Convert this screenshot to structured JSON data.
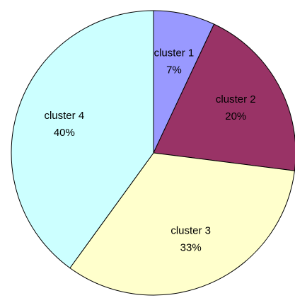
{
  "chart_data": {
    "type": "pie",
    "categories": [
      "cluster 1",
      "cluster 2",
      "cluster 3",
      "cluster 4"
    ],
    "values": [
      7,
      20,
      33,
      40
    ],
    "value_labels": [
      "7%",
      "20%",
      "33%",
      "40%"
    ],
    "colors": [
      "#9999ff",
      "#993366",
      "#ffffcc",
      "#ccffff"
    ]
  }
}
